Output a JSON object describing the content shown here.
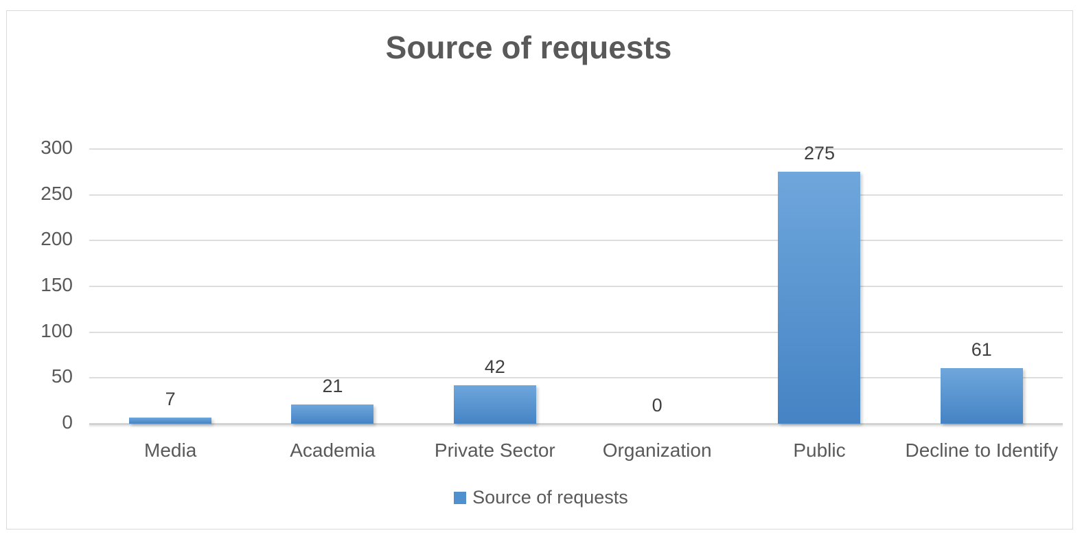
{
  "chart_data": {
    "type": "bar",
    "title": "Source of requests",
    "categories": [
      "Media",
      "Academia",
      "Private Sector",
      "Organization",
      "Public",
      "Decline to Identify"
    ],
    "values": [
      7,
      21,
      42,
      0,
      275,
      61
    ],
    "series_name": "Source of requests",
    "data_labels": [
      7,
      21,
      42,
      0,
      275,
      61
    ],
    "xlabel": "",
    "ylabel": "",
    "ylim": [
      0,
      300
    ],
    "yticks": [
      0,
      50,
      100,
      150,
      200,
      250,
      300
    ],
    "grid": true,
    "legend_position": "bottom"
  },
  "legend": {
    "label": "Source of requests"
  },
  "colors": {
    "bar_gradient_top": "#6FA7DC",
    "bar_gradient_bottom": "#4583C4",
    "legend_swatch": "#5090CD",
    "gridline": "#DDDDDD",
    "axis_line": "#D2D2D2",
    "title_text": "#595959",
    "tick_text": "#595959",
    "category_text": "#595959",
    "data_label_text": "#404040",
    "frame_border": "#D9D9D9",
    "background": "#FFFFFF"
  }
}
